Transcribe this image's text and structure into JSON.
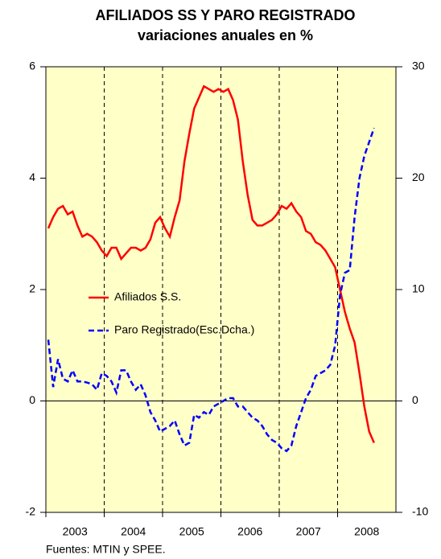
{
  "chart_data": {
    "type": "line",
    "title": "AFILIADOS SS Y PARO REGISTRADO",
    "subtitle": "variaciones anuales en %",
    "source": "Fuentes: MTIN y SPEE.",
    "x_labels": [
      "2003",
      "2004",
      "2005",
      "2006",
      "2007",
      "2008"
    ],
    "months_per_label": 12,
    "series": [
      {
        "name": "Afiliados S.S.",
        "color": "#ff0000",
        "dash": false,
        "axis": "y",
        "values": [
          3.1,
          3.3,
          3.45,
          3.5,
          3.35,
          3.4,
          3.15,
          2.95,
          3.0,
          2.95,
          2.85,
          2.7,
          2.6,
          2.75,
          2.75,
          2.55,
          2.65,
          2.75,
          2.75,
          2.7,
          2.75,
          2.9,
          3.2,
          3.3,
          3.1,
          2.95,
          3.3,
          3.6,
          4.3,
          4.8,
          5.25,
          5.45,
          5.65,
          5.6,
          5.55,
          5.6,
          5.55,
          5.6,
          5.4,
          5.05,
          4.3,
          3.7,
          3.25,
          3.15,
          3.15,
          3.2,
          3.25,
          3.35,
          3.5,
          3.45,
          3.55,
          3.4,
          3.3,
          3.05,
          3.0,
          2.85,
          2.8,
          2.7,
          2.55,
          2.4,
          2.0,
          1.6,
          1.3,
          1.05,
          0.5,
          -0.1,
          -0.55,
          -0.75
        ]
      },
      {
        "name": "Paro Registrado(Esc.Dcha.)",
        "color": "#0000ff",
        "dash": true,
        "axis": "y2",
        "values": [
          5.5,
          1.25,
          3.75,
          2.0,
          1.75,
          2.75,
          1.75,
          1.75,
          1.65,
          1.5,
          1.0,
          2.5,
          2.25,
          1.75,
          0.75,
          2.75,
          2.75,
          1.75,
          1.0,
          1.5,
          0.5,
          -1.0,
          -1.75,
          -2.75,
          -2.5,
          -2.25,
          -1.75,
          -3.0,
          -4.0,
          -3.75,
          -1.25,
          -1.5,
          -1.0,
          -1.25,
          -0.5,
          -0.25,
          0.0,
          0.25,
          0.25,
          -0.5,
          -0.5,
          -1.0,
          -1.5,
          -1.75,
          -2.25,
          -3.0,
          -3.5,
          -3.75,
          -4.25,
          -4.5,
          -4.0,
          -2.25,
          -1.0,
          0.25,
          1.0,
          2.25,
          2.5,
          2.75,
          3.25,
          5.0,
          9.5,
          11.5,
          11.75,
          16.5,
          20.0,
          22.0,
          23.25,
          24.5
        ]
      }
    ],
    "ylim": [
      -2,
      6
    ],
    "yticks": [
      -2,
      0,
      2,
      4,
      6
    ],
    "y2lim": [
      -10,
      30
    ],
    "y2ticks": [
      -10,
      0,
      10,
      20,
      30
    ],
    "background": "#ffffc8"
  }
}
